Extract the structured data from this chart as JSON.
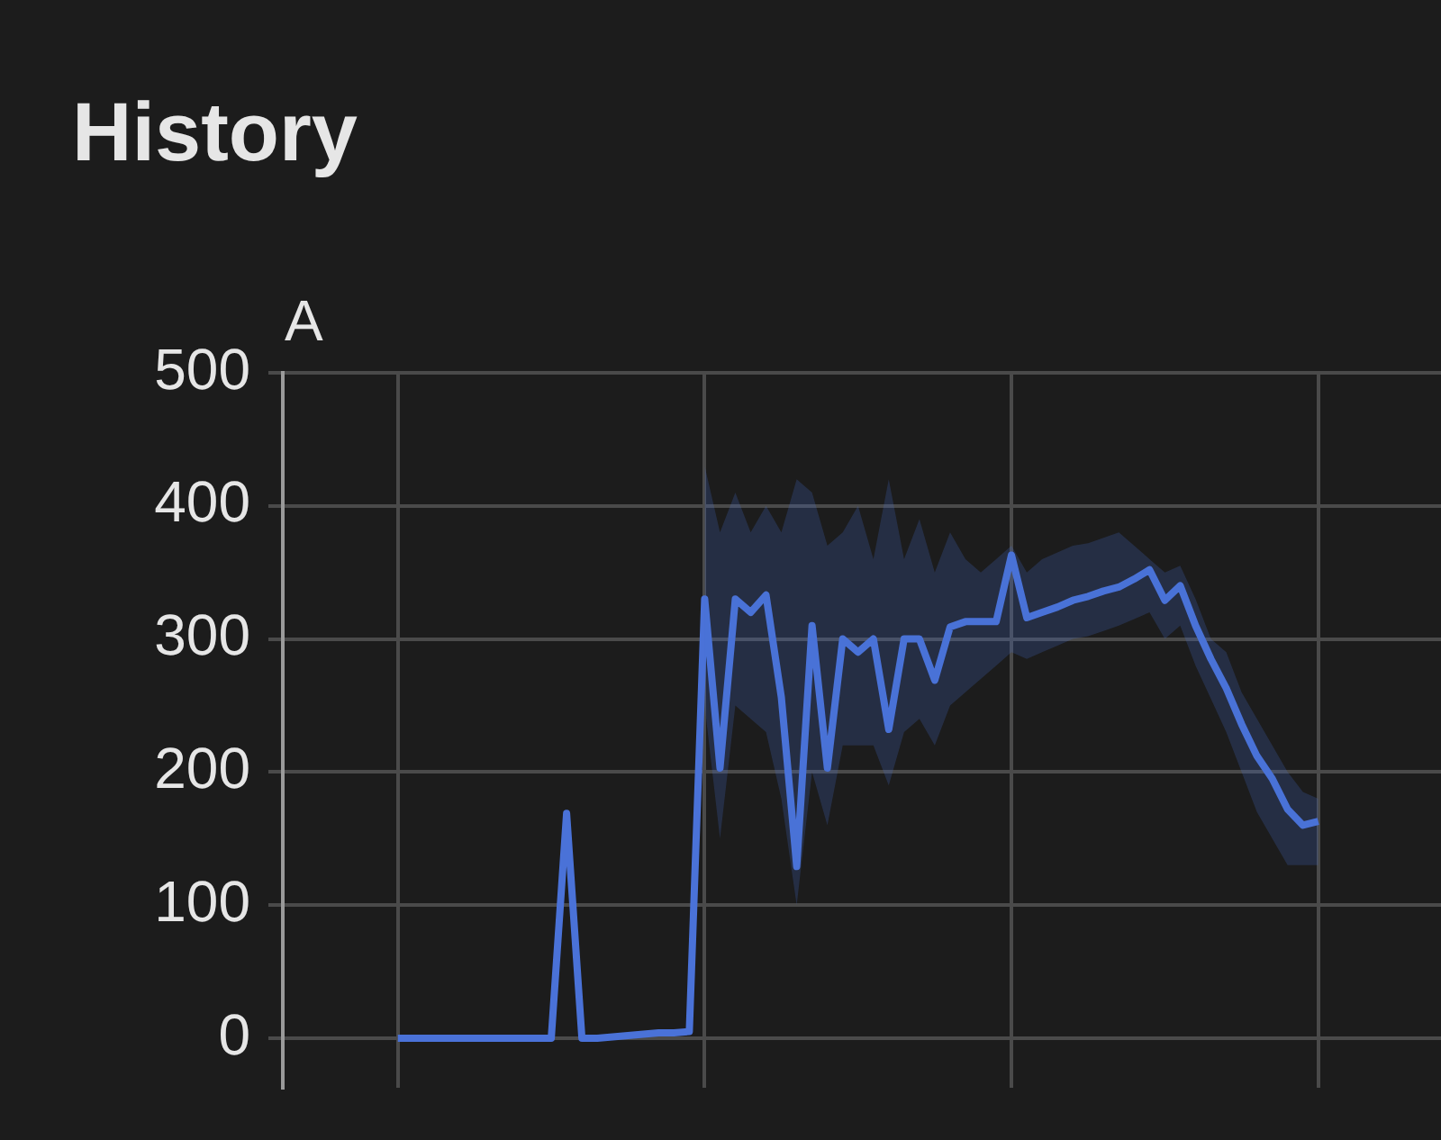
{
  "chart_data": {
    "type": "line",
    "title": "History",
    "ylabel": "A",
    "categories": [
      null,
      null,
      null,
      null,
      null,
      null,
      null,
      null,
      null,
      null,
      null,
      null,
      null,
      null,
      null,
      null,
      null,
      null,
      null,
      null,
      null,
      null,
      null,
      null,
      null,
      null,
      null,
      null,
      null,
      null,
      null,
      null,
      null,
      null,
      null,
      null,
      null,
      null,
      null,
      null,
      null,
      null,
      null,
      null,
      null,
      null,
      null,
      null,
      null,
      null,
      null,
      null,
      null,
      null,
      null,
      null,
      null,
      null,
      null,
      null,
      null
    ],
    "series": [
      {
        "color": "#4a72d8",
        "values": [
          0,
          0,
          0,
          0,
          0,
          0,
          0,
          0,
          0,
          0,
          0,
          169,
          0,
          0,
          1,
          2,
          3,
          4,
          4,
          5,
          330,
          203,
          330,
          320,
          333,
          256,
          129,
          310,
          203,
          300,
          290,
          300,
          232,
          300,
          300,
          269,
          309,
          313,
          313,
          313,
          363,
          316,
          320,
          324,
          329,
          332,
          336,
          339,
          345,
          352,
          329,
          340,
          310,
          285,
          263,
          236,
          212,
          195,
          172,
          160,
          163
        ],
        "lower": [
          null,
          null,
          null,
          null,
          null,
          null,
          null,
          null,
          null,
          null,
          null,
          null,
          null,
          null,
          null,
          null,
          null,
          null,
          null,
          null,
          250,
          150,
          250,
          240,
          230,
          180,
          100,
          200,
          160,
          220,
          220,
          220,
          190,
          230,
          240,
          220,
          250,
          260,
          270,
          280,
          290,
          285,
          290,
          295,
          300,
          302,
          306,
          310,
          315,
          320,
          300,
          310,
          280,
          255,
          230,
          200,
          170,
          150,
          130,
          130,
          130
        ],
        "upper": [
          null,
          null,
          null,
          null,
          null,
          null,
          null,
          null,
          null,
          null,
          null,
          null,
          null,
          null,
          null,
          null,
          null,
          null,
          null,
          null,
          430,
          380,
          410,
          380,
          400,
          380,
          420,
          410,
          370,
          380,
          400,
          360,
          420,
          360,
          390,
          350,
          380,
          360,
          350,
          360,
          370,
          350,
          360,
          365,
          370,
          372,
          376,
          380,
          370,
          360,
          350,
          355,
          330,
          300,
          290,
          260,
          240,
          220,
          200,
          185,
          180
        ]
      }
    ],
    "ylim": [
      -37,
      500
    ],
    "yticks": [
      0,
      100,
      200,
      300,
      400,
      500
    ],
    "grid": true,
    "tick_labels": "y",
    "marker": "none",
    "line_style": "solid"
  }
}
